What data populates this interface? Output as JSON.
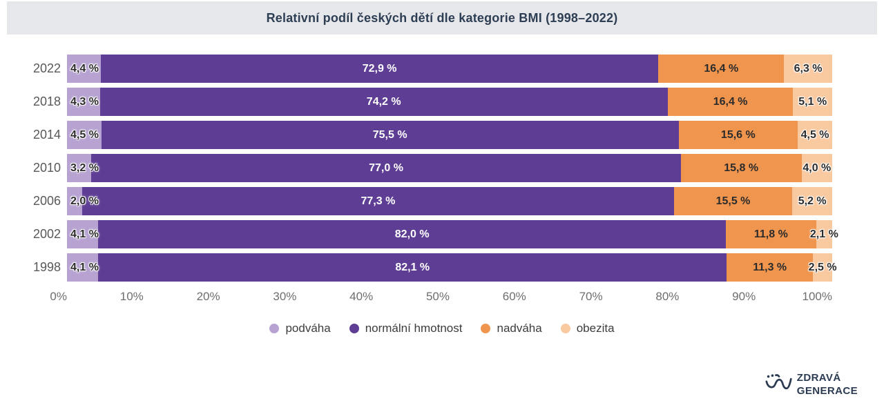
{
  "title": "Relativní podíl českých dětí dle kategorie BMI (1998–2022)",
  "chart_data": {
    "type": "bar",
    "orientation": "horizontal-stacked",
    "title": "Relativní podíl českých dětí dle kategorie BMI (1998–2022)",
    "categories": [
      "2022",
      "2018",
      "2014",
      "2010",
      "2006",
      "2002",
      "1998"
    ],
    "series": [
      {
        "name": "podváha",
        "color": "#b7a2d2",
        "values": [
          4.4,
          4.3,
          4.5,
          3.2,
          2.0,
          4.1,
          4.1
        ],
        "labels": [
          "4,4 %",
          "4,3 %",
          "4,5 %",
          "3,2 %",
          "2,0 %",
          "4,1 %",
          "4,1 %"
        ]
      },
      {
        "name": "normální hmotnost",
        "color": "#5e3e94",
        "values": [
          72.9,
          74.2,
          75.5,
          77.0,
          77.3,
          82.0,
          82.1
        ],
        "labels": [
          "72,9 %",
          "74,2 %",
          "75,5 %",
          "77,0 %",
          "77,3 %",
          "82,0 %",
          "82,1 %"
        ]
      },
      {
        "name": "nadváha",
        "color": "#f0954e",
        "values": [
          16.4,
          16.4,
          15.6,
          15.8,
          15.5,
          11.8,
          11.3
        ],
        "labels": [
          "16,4 %",
          "16,4 %",
          "15,6 %",
          "15,8 %",
          "15,5 %",
          "11,8 %",
          "11,3 %"
        ]
      },
      {
        "name": "obezita",
        "color": "#f9c9a0",
        "values": [
          6.3,
          5.1,
          4.5,
          4.0,
          5.2,
          2.1,
          2.5
        ],
        "labels": [
          "6,3 %",
          "5,1 %",
          "4,5 %",
          "4,0 %",
          "5,2 %",
          "2,1 %",
          "2,5 %"
        ]
      }
    ],
    "x_ticks": [
      "0%",
      "10%",
      "20%",
      "30%",
      "40%",
      "50%",
      "60%",
      "70%",
      "80%",
      "90%",
      "100%"
    ],
    "xlim": [
      0,
      100
    ],
    "grid": false,
    "legend_position": "bottom"
  },
  "logo": {
    "line1": "ZDRAVÁ",
    "line2": "GENERACE"
  }
}
